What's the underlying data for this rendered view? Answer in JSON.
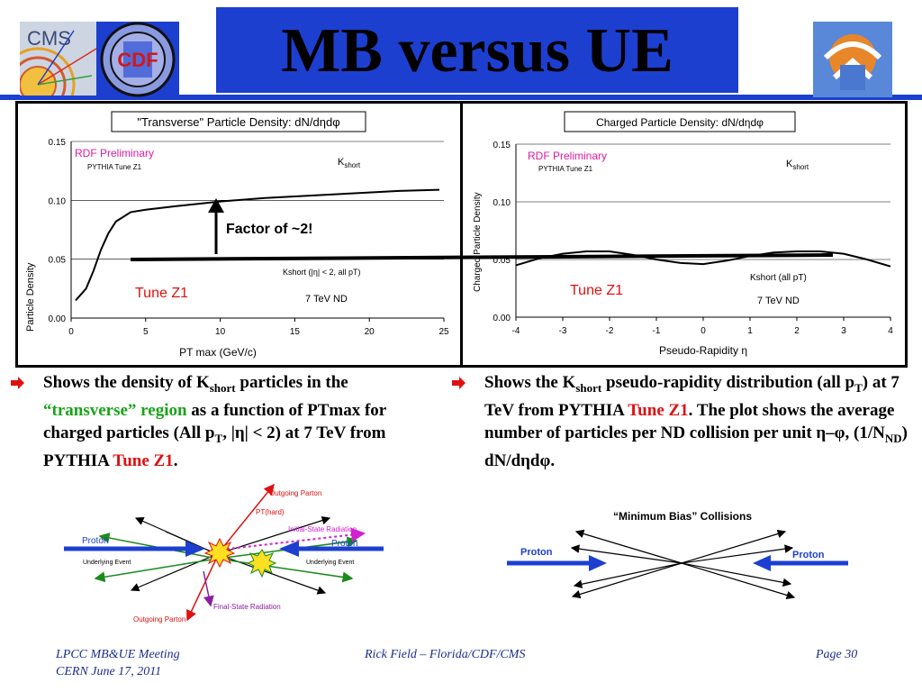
{
  "slide": {
    "title": "MB versus UE",
    "colors": {
      "title_bar": "#1d3fd0",
      "accent_red": "#e01010",
      "accent_green": "#1aa31a",
      "footer": "#1b2e8f"
    }
  },
  "logos": {
    "cms": "CMS",
    "cdf": "CDF",
    "cms_icon": "cms-logo",
    "cdf_icon": "cdf-logo",
    "third_icon": "uf-logo"
  },
  "chart_data": [
    {
      "type": "line",
      "title": "\"Transverse\" Particle Density: dN/dηdφ",
      "xlabel": "PT max (GeV/c)",
      "ylabel": "Particle Density",
      "xlim": [
        0,
        25
      ],
      "ylim": [
        0,
        0.15
      ],
      "xticks": [
        "0",
        "5",
        "10",
        "15",
        "20",
        "25"
      ],
      "yticks": [
        "0.00",
        "0.05",
        "0.10",
        "0.15"
      ],
      "grid": true,
      "annotations": {
        "preliminary": "RDF Preliminary",
        "generator": "PYTHIA Tune Z1",
        "particle_label": "K",
        "particle_sub": "short",
        "cut_label": "Kshort (|η| < 2, all pT)",
        "energy": "7 TeV ND",
        "tune": "Tune Z1",
        "factor": "Factor of ~2!"
      },
      "series": [
        {
          "color": "#000000",
          "x": [
            0.3,
            1,
            1.5,
            2,
            2.5,
            3,
            4,
            5,
            7,
            10,
            13,
            16,
            19,
            22,
            24.7
          ],
          "y": [
            0.015,
            0.025,
            0.04,
            0.058,
            0.072,
            0.082,
            0.09,
            0.092,
            0.095,
            0.099,
            0.102,
            0.104,
            0.106,
            0.108,
            0.109
          ]
        }
      ]
    },
    {
      "type": "line",
      "title": "Charged Particle Density: dN/dηdφ",
      "xlabel": "Pseudo-Rapidity η",
      "ylabel": "Charged Particle Density",
      "xlim": [
        -4,
        4
      ],
      "ylim": [
        0,
        0.15
      ],
      "xticks": [
        "-4",
        "-3",
        "-2",
        "-1",
        "0",
        "1",
        "2",
        "3",
        "4"
      ],
      "yticks": [
        "0.00",
        "0.05",
        "0.10",
        "0.15"
      ],
      "grid": true,
      "annotations": {
        "preliminary": "RDF Preliminary",
        "generator": "PYTHIA Tune Z1",
        "particle_label": "K",
        "particle_sub": "short",
        "cut_label": "Kshort (all pT)",
        "energy": "7 TeV ND",
        "tune": "Tune Z1"
      },
      "series": [
        {
          "color": "#000000",
          "x": [
            -4,
            -3.5,
            -3,
            -2.5,
            -2,
            -1.5,
            -1,
            -0.5,
            0,
            0.5,
            1,
            1.5,
            2,
            2.5,
            3,
            3.5,
            4
          ],
          "y": [
            0.045,
            0.051,
            0.055,
            0.057,
            0.057,
            0.054,
            0.05,
            0.047,
            0.046,
            0.049,
            0.053,
            0.056,
            0.057,
            0.057,
            0.055,
            0.05,
            0.044
          ]
        }
      ]
    }
  ],
  "bullets": {
    "left": {
      "p1": "Shows the density of K",
      "sub1": "short",
      "p2": " particles in the ",
      "green": "“transverse” region",
      "p3": " as a function of PTmax for charged particles (All p",
      "sub2": "T",
      "p4": ", |η| < 2) at 7 TeV from PYTHIA ",
      "red": "Tune Z1",
      "p5": "."
    },
    "right": {
      "p1": "Shows the K",
      "sub1": "short",
      "p2": " pseudo-rapidity distribution (all p",
      "sub2": "T",
      "p3": ") at 7 TeV from PYTHIA ",
      "red": "Tune Z1",
      "p4": ".  The plot shows the average number of particles per ND collision per unit η–φ, (1/N",
      "sub3": "ND",
      "p5": ") dN/dηdφ."
    }
  },
  "diagram_ue": {
    "outgoing_parton_top": "Outgoing Parton",
    "pt_hard": "PT(hard)",
    "isr": "Initial-State Radiation",
    "proton_left": "Proton",
    "proton_right": "Proton",
    "ue_left": "Underlying Event",
    "ue_right": "Underlying Event",
    "fsr": "Final-State Radiation",
    "outgoing_parton_bottom": "Outgoing Parton"
  },
  "diagram_mb": {
    "title": "“Minimum Bias” Collisions",
    "proton_left": "Proton",
    "proton_right": "Proton"
  },
  "footer": {
    "meeting": "LPCC MB&UE Meeting",
    "place": "CERN June 17, 2011",
    "author": "Rick Field – Florida/CDF/CMS",
    "page": "Page 30"
  }
}
